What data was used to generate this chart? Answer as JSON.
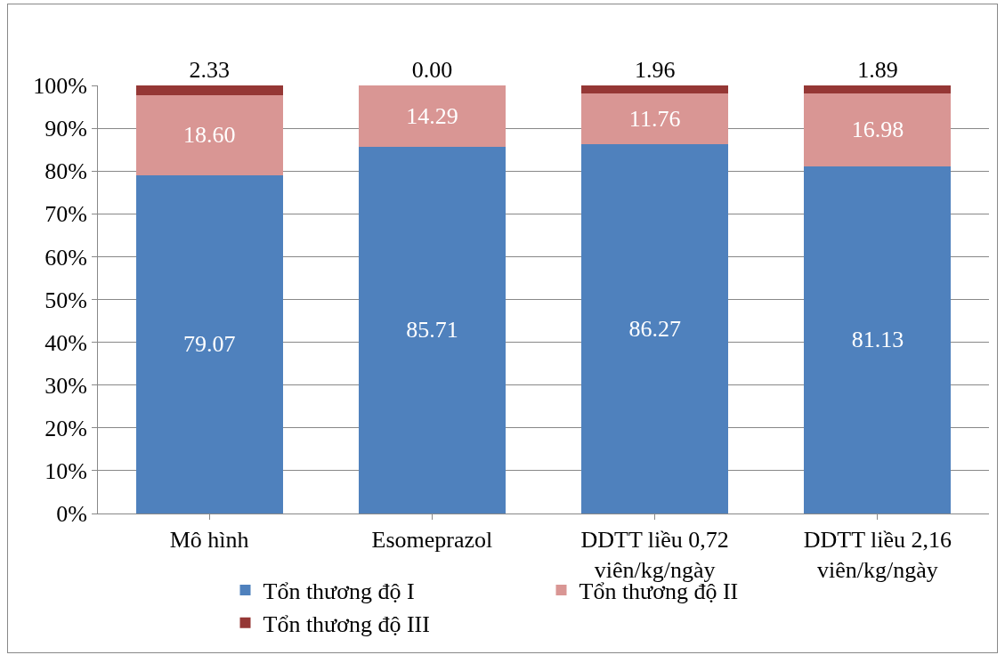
{
  "chart_data": {
    "type": "bar",
    "stacked": true,
    "categories": [
      "Mô hình",
      "Esomeprazol",
      "DDTT liều 0,72 viên/kg/ngày",
      "DDTT liều 2,16 viên/kg/ngày"
    ],
    "series": [
      {
        "name": "Tổn thương độ I",
        "color": "#4f81bd",
        "values": [
          79.07,
          85.71,
          86.27,
          81.13
        ],
        "value_labels": [
          "79.07",
          "85.71",
          "86.27",
          "81.13"
        ]
      },
      {
        "name": "Tổn thương độ II",
        "color": "#d99694",
        "values": [
          18.6,
          14.29,
          11.76,
          16.98
        ],
        "value_labels": [
          "18.60",
          "14.29",
          "11.76",
          "16.98"
        ]
      },
      {
        "name": "Tổn thương độ III",
        "color": "#953735",
        "values": [
          2.33,
          0.0,
          1.96,
          1.89
        ],
        "value_labels": [
          "2.33",
          "0.00",
          "1.96",
          "1.89"
        ]
      }
    ],
    "ylim": [
      0,
      100
    ],
    "yticks": [
      {
        "value": 0,
        "label": "0%"
      },
      {
        "value": 10,
        "label": "10%"
      },
      {
        "value": 20,
        "label": "20%"
      },
      {
        "value": 30,
        "label": "30%"
      },
      {
        "value": 40,
        "label": "40%"
      },
      {
        "value": 50,
        "label": "50%"
      },
      {
        "value": 60,
        "label": "60%"
      },
      {
        "value": 70,
        "label": "70%"
      },
      {
        "value": 80,
        "label": "80%"
      },
      {
        "value": 90,
        "label": "90%"
      },
      {
        "value": 100,
        "label": "100%"
      }
    ],
    "grid": "y",
    "legend": "bottom"
  }
}
